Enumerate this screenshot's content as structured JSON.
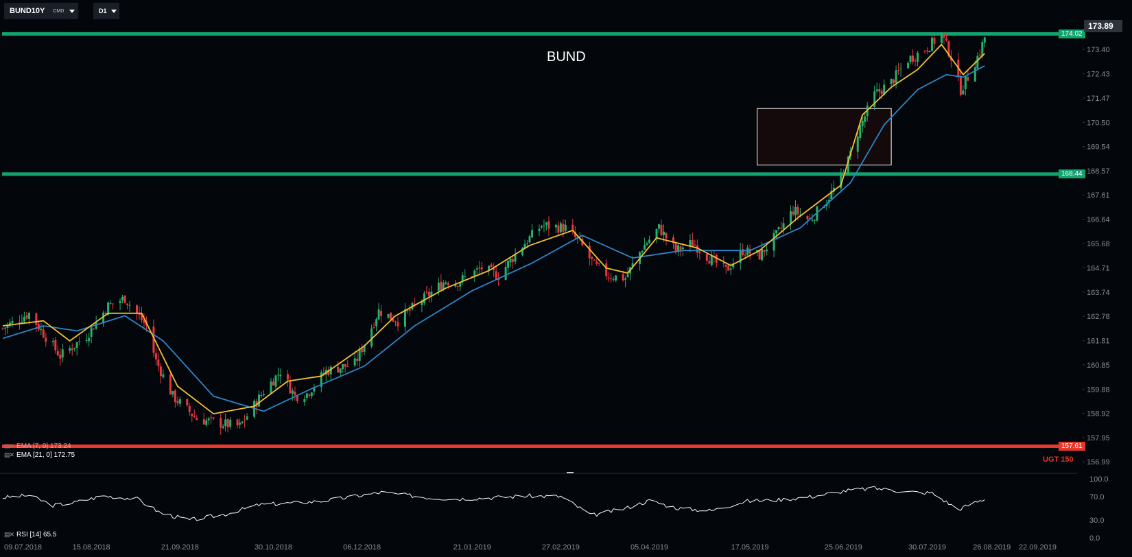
{
  "toolbar": {
    "symbol": "BUND10Y",
    "symbol_sub": "CMD",
    "timeframe": "D1"
  },
  "legend": {
    "ema1": "EMA [7, 0] 173.24",
    "ema2": "EMA [21, 0] 172.75",
    "rsi": "RSI [14] 65.5"
  },
  "corner_text": "UGT 150",
  "colors": {
    "background": "#03060b",
    "bull_candle": "#27b06b",
    "bear_candle": "#e8383f",
    "ema_fast": "#f2c230",
    "ema_slow": "#2d86c8",
    "level_line": "#12a36f",
    "low_line": "#e8372c",
    "rsi_line": "#ffffff",
    "zone_fill": "#140a0c",
    "zone_border": "#ffffff"
  },
  "chart_data": {
    "type": "candlestick",
    "title": "BUND",
    "xlabel": "",
    "ylabel": "",
    "x_ticks": [
      "09.07.2018",
      "15.08.2018",
      "21.09.2018",
      "30.10.2018",
      "06.12.2018",
      "21.01.2019",
      "27.02.2019",
      "05.04.2019",
      "17.05.2019",
      "25.06.2019",
      "30.07.2019",
      "26.08.2019",
      "22.09.2019"
    ],
    "y_ticks": [
      156.99,
      157.95,
      158.92,
      159.88,
      160.85,
      161.81,
      162.78,
      163.74,
      164.71,
      165.68,
      166.64,
      167.61,
      168.57,
      169.54,
      170.5,
      171.47,
      172.43,
      173.4
    ],
    "ylim": [
      156.75,
      174.55
    ],
    "current_price": "173.89",
    "horizontal_levels": [
      {
        "label": "174.02",
        "value": 174.02,
        "color": "green"
      },
      {
        "label": "168.44",
        "value": 168.44,
        "color": "green"
      },
      {
        "label": "157.61",
        "value": 157.61,
        "color": "red"
      }
    ],
    "zone": {
      "x_from": "2019-05-20",
      "x_to": "2019-07-15",
      "y_from": 168.8,
      "y_to": 171.05
    },
    "price_path": [
      [
        "2018-07-09",
        162.3
      ],
      [
        "2018-07-20",
        162.9
      ],
      [
        "2018-07-26",
        162.1
      ],
      [
        "2018-08-02",
        161.2
      ],
      [
        "2018-08-13",
        162.0
      ],
      [
        "2018-08-22",
        163.2
      ],
      [
        "2018-08-29",
        163.5
      ],
      [
        "2018-09-07",
        162.4
      ],
      [
        "2018-09-11",
        161.0
      ],
      [
        "2018-09-18",
        159.6
      ],
      [
        "2018-09-28",
        158.7
      ],
      [
        "2018-10-09",
        158.5
      ],
      [
        "2018-10-16",
        158.4
      ],
      [
        "2018-10-26",
        159.8
      ],
      [
        "2018-11-02",
        160.6
      ],
      [
        "2018-11-08",
        159.6
      ],
      [
        "2018-11-13",
        159.7
      ],
      [
        "2018-11-21",
        160.6
      ],
      [
        "2018-12-03",
        160.9
      ],
      [
        "2018-12-07",
        161.7
      ],
      [
        "2018-12-13",
        163.0
      ],
      [
        "2018-12-21",
        162.6
      ],
      [
        "2019-01-01",
        163.5
      ],
      [
        "2019-01-10",
        164.2
      ],
      [
        "2019-01-14",
        164.1
      ],
      [
        "2019-01-25",
        164.7
      ],
      [
        "2019-02-01",
        164.4
      ],
      [
        "2019-02-11",
        165.6
      ],
      [
        "2019-02-19",
        166.4
      ],
      [
        "2019-03-01",
        166.3
      ],
      [
        "2019-03-07",
        165.7
      ],
      [
        "2019-03-13",
        164.8
      ],
      [
        "2019-03-19",
        164.4
      ],
      [
        "2019-03-26",
        164.3
      ],
      [
        "2019-04-02",
        165.5
      ],
      [
        "2019-04-09",
        166.3
      ],
      [
        "2019-04-16",
        165.4
      ],
      [
        "2019-04-23",
        165.7
      ],
      [
        "2019-04-30",
        165.1
      ],
      [
        "2019-05-07",
        164.6
      ],
      [
        "2019-05-14",
        165.4
      ],
      [
        "2019-05-21",
        165.2
      ],
      [
        "2019-05-28",
        166.0
      ],
      [
        "2019-06-04",
        167.0
      ],
      [
        "2019-06-11",
        166.6
      ],
      [
        "2019-06-18",
        167.4
      ],
      [
        "2019-06-25",
        168.4
      ],
      [
        "2019-07-01",
        170.1
      ],
      [
        "2019-07-08",
        171.6
      ],
      [
        "2019-07-15",
        172.1
      ],
      [
        "2019-07-22",
        173.0
      ],
      [
        "2019-07-29",
        173.4
      ],
      [
        "2019-08-05",
        174.0
      ],
      [
        "2019-08-09",
        173.1
      ],
      [
        "2019-08-13",
        171.8
      ],
      [
        "2019-08-16",
        172.3
      ],
      [
        "2019-08-21",
        173.3
      ],
      [
        "2019-08-23",
        173.89
      ]
    ],
    "ema_fast_path": [
      [
        "2018-07-09",
        162.4
      ],
      [
        "2018-07-26",
        162.6
      ],
      [
        "2018-08-06",
        161.8
      ],
      [
        "2018-08-22",
        162.9
      ],
      [
        "2018-09-05",
        162.9
      ],
      [
        "2018-09-20",
        160.0
      ],
      [
        "2018-10-05",
        158.9
      ],
      [
        "2018-10-22",
        159.2
      ],
      [
        "2018-11-05",
        160.2
      ],
      [
        "2018-11-19",
        160.4
      ],
      [
        "2018-12-07",
        161.6
      ],
      [
        "2018-12-20",
        162.8
      ],
      [
        "2019-01-10",
        163.9
      ],
      [
        "2019-01-28",
        164.6
      ],
      [
        "2019-02-14",
        165.6
      ],
      [
        "2019-03-04",
        166.2
      ],
      [
        "2019-03-18",
        164.7
      ],
      [
        "2019-03-27",
        164.5
      ],
      [
        "2019-04-08",
        165.9
      ],
      [
        "2019-04-25",
        165.5
      ],
      [
        "2019-05-09",
        164.8
      ],
      [
        "2019-05-21",
        165.4
      ],
      [
        "2019-06-06",
        166.7
      ],
      [
        "2019-06-24",
        168.0
      ],
      [
        "2019-07-03",
        170.8
      ],
      [
        "2019-07-15",
        171.9
      ],
      [
        "2019-07-26",
        172.6
      ],
      [
        "2019-08-05",
        173.6
      ],
      [
        "2019-08-14",
        172.4
      ],
      [
        "2019-08-23",
        173.24
      ]
    ],
    "ema_slow_path": [
      [
        "2018-07-09",
        161.9
      ],
      [
        "2018-07-26",
        162.4
      ],
      [
        "2018-08-09",
        162.2
      ],
      [
        "2018-08-29",
        162.8
      ],
      [
        "2018-09-14",
        161.8
      ],
      [
        "2018-10-05",
        159.6
      ],
      [
        "2018-10-26",
        159.0
      ],
      [
        "2018-11-15",
        159.9
      ],
      [
        "2018-12-07",
        160.8
      ],
      [
        "2018-12-28",
        162.4
      ],
      [
        "2019-01-21",
        163.8
      ],
      [
        "2019-02-15",
        164.9
      ],
      [
        "2019-03-08",
        166.0
      ],
      [
        "2019-03-29",
        165.1
      ],
      [
        "2019-04-19",
        165.4
      ],
      [
        "2019-05-17",
        165.4
      ],
      [
        "2019-06-07",
        166.3
      ],
      [
        "2019-06-28",
        168.1
      ],
      [
        "2019-07-12",
        170.4
      ],
      [
        "2019-07-26",
        171.8
      ],
      [
        "2019-08-07",
        172.4
      ],
      [
        "2019-08-14",
        172.3
      ],
      [
        "2019-08-23",
        172.75
      ]
    ],
    "rsi": {
      "ylim": [
        0,
        100
      ],
      "y_ticks": [
        0.0,
        30.0,
        70.0,
        100.0
      ],
      "path": [
        [
          "2018-07-09",
          68
        ],
        [
          "2018-07-20",
          72
        ],
        [
          "2018-07-30",
          55
        ],
        [
          "2018-08-08",
          60
        ],
        [
          "2018-08-20",
          71
        ],
        [
          "2018-09-03",
          66
        ],
        [
          "2018-09-13",
          42
        ],
        [
          "2018-09-25",
          30
        ],
        [
          "2018-10-10",
          40
        ],
        [
          "2018-10-24",
          56
        ],
        [
          "2018-11-07",
          59
        ],
        [
          "2018-11-19",
          62
        ],
        [
          "2018-12-06",
          72
        ],
        [
          "2018-12-14",
          77
        ],
        [
          "2019-01-03",
          68
        ],
        [
          "2019-01-14",
          66
        ],
        [
          "2019-01-29",
          68
        ],
        [
          "2019-02-14",
          71
        ],
        [
          "2019-02-27",
          70
        ],
        [
          "2019-03-12",
          38
        ],
        [
          "2019-03-26",
          50
        ],
        [
          "2019-04-05",
          63
        ],
        [
          "2019-04-17",
          50
        ],
        [
          "2019-05-01",
          46
        ],
        [
          "2019-05-15",
          62
        ],
        [
          "2019-05-28",
          64
        ],
        [
          "2019-06-12",
          70
        ],
        [
          "2019-06-26",
          80
        ],
        [
          "2019-07-08",
          84
        ],
        [
          "2019-07-22",
          78
        ],
        [
          "2019-08-01",
          76
        ],
        [
          "2019-08-12",
          48
        ],
        [
          "2019-08-19",
          60
        ],
        [
          "2019-08-23",
          65.5
        ]
      ]
    }
  }
}
